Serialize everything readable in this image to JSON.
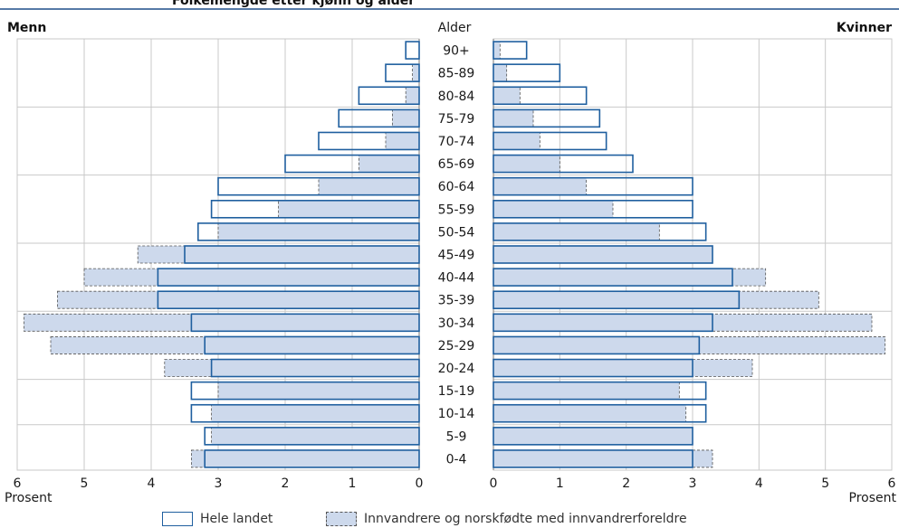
{
  "chart_data": {
    "type": "bar",
    "orientation": "population-pyramid",
    "left_title": "Menn",
    "right_title": "Kvinner",
    "center_title": "Alder",
    "xlabel_left": "Prosent",
    "xlabel_right": "Prosent",
    "xlim": [
      0,
      6
    ],
    "xticks": [
      0,
      1,
      2,
      3,
      4,
      5,
      6
    ],
    "grid": true,
    "legend_position": "bottom",
    "categories": [
      "90+",
      "85-89",
      "80-84",
      "75-79",
      "70-74",
      "65-69",
      "60-64",
      "55-59",
      "50-54",
      "45-49",
      "40-44",
      "35-39",
      "30-34",
      "25-29",
      "20-24",
      "15-19",
      "10-14",
      "5-9",
      "0-4"
    ],
    "series": [
      {
        "name": "Hele landet",
        "color": "#1f5f9f",
        "men": [
          0.2,
          0.5,
          0.9,
          1.2,
          1.5,
          2.0,
          3.0,
          3.1,
          3.3,
          3.5,
          3.9,
          3.9,
          3.4,
          3.2,
          3.1,
          3.4,
          3.4,
          3.2,
          3.2
        ],
        "women": [
          0.5,
          1.0,
          1.4,
          1.6,
          1.7,
          2.1,
          3.0,
          3.0,
          3.2,
          3.3,
          3.6,
          3.7,
          3.3,
          3.1,
          3.0,
          3.2,
          3.2,
          3.0,
          3.0
        ]
      },
      {
        "name": "Innvandrere og norskfødte med innvandrerforeldre",
        "color": "#cdd9ec",
        "men": [
          0.0,
          0.1,
          0.2,
          0.4,
          0.5,
          0.9,
          1.5,
          2.1,
          3.0,
          4.2,
          5.0,
          5.4,
          5.9,
          5.5,
          3.8,
          3.0,
          3.1,
          3.1,
          3.4
        ],
        "women": [
          0.1,
          0.2,
          0.4,
          0.6,
          0.7,
          1.0,
          1.4,
          1.8,
          2.5,
          3.3,
          4.1,
          4.9,
          5.7,
          5.9,
          3.9,
          2.8,
          2.9,
          3.0,
          3.3
        ]
      }
    ]
  },
  "header": {
    "partial_title": "Folkemengde etter kjønn og alder"
  }
}
